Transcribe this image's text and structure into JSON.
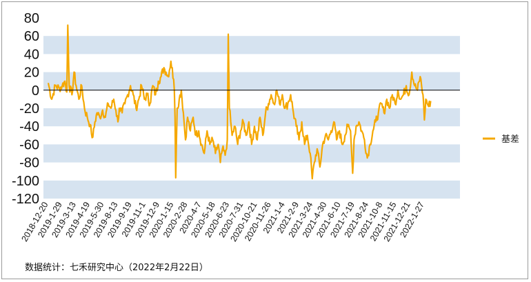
{
  "chart_data": {
    "type": "line",
    "ylim": [
      -120,
      80
    ],
    "y_ticks": [
      80,
      60,
      40,
      20,
      0,
      -20,
      -40,
      -60,
      -80,
      -100,
      -120
    ],
    "x_ticks": [
      "2018-12-20",
      "2019-1-29",
      "2019-3-13",
      "2019-4-19",
      "2019-5-30",
      "2019-8-13",
      "2019-9-19",
      "2019-11-1",
      "2019-12-9",
      "2020-1-15",
      "2020-2-28",
      "2020-4-7",
      "2020-5-18",
      "2020-6-23",
      "2020-7-31",
      "2020-10-21",
      "2020-11-26",
      "2021-1-4",
      "2021-2-9",
      "2021-3-24",
      "2021-4-30",
      "2021-6-10",
      "2021-7-19",
      "2021-8-24",
      "2021-10-8",
      "2021-11-15",
      "2021-12-21",
      "2022-1-27"
    ],
    "grid": "alternating horizontal bands",
    "legend": "right",
    "series": [
      {
        "name": "基差",
        "color": "#f5a800",
        "keypoints": [
          [
            0,
            8
          ],
          [
            0.25,
            -10
          ],
          [
            0.5,
            5
          ],
          [
            0.8,
            2
          ],
          [
            1.0,
            5
          ],
          [
            1.2,
            10
          ],
          [
            1.33,
            -2
          ],
          [
            1.4,
            72
          ],
          [
            1.5,
            5
          ],
          [
            1.7,
            -5
          ],
          [
            1.85,
            20
          ],
          [
            2.0,
            5
          ],
          [
            2.2,
            -10
          ],
          [
            2.4,
            5
          ],
          [
            2.6,
            -20
          ],
          [
            2.8,
            -30
          ],
          [
            3.0,
            -38
          ],
          [
            3.1,
            -48
          ],
          [
            3.2,
            -52
          ],
          [
            3.35,
            -35
          ],
          [
            3.5,
            -25
          ],
          [
            3.7,
            -30
          ],
          [
            3.9,
            -22
          ],
          [
            4.1,
            -30
          ],
          [
            4.3,
            -15
          ],
          [
            4.5,
            -20
          ],
          [
            4.7,
            -10
          ],
          [
            4.85,
            -22
          ],
          [
            5.0,
            -35
          ],
          [
            5.1,
            -20
          ],
          [
            5.3,
            -25
          ],
          [
            5.5,
            -15
          ],
          [
            5.7,
            -5
          ],
          [
            5.9,
            5
          ],
          [
            6.1,
            -5
          ],
          [
            6.3,
            -20
          ],
          [
            6.5,
            -10
          ],
          [
            6.7,
            5
          ],
          [
            6.9,
            -10
          ],
          [
            7.1,
            -5
          ],
          [
            7.3,
            -15
          ],
          [
            7.5,
            5
          ],
          [
            7.7,
            -5
          ],
          [
            7.9,
            10
          ],
          [
            8.1,
            15
          ],
          [
            8.3,
            25
          ],
          [
            8.45,
            20
          ],
          [
            8.6,
            15
          ],
          [
            8.8,
            32
          ],
          [
            9.0,
            12
          ],
          [
            9.05,
            0
          ],
          [
            9.1,
            -30
          ],
          [
            9.15,
            -97
          ],
          [
            9.25,
            -20
          ],
          [
            9.4,
            -10
          ],
          [
            9.55,
            0
          ],
          [
            9.7,
            -25
          ],
          [
            9.85,
            -55
          ],
          [
            10.0,
            -30
          ],
          [
            10.2,
            -45
          ],
          [
            10.4,
            -30
          ],
          [
            10.6,
            -50
          ],
          [
            10.8,
            -45
          ],
          [
            11.0,
            -60
          ],
          [
            11.2,
            -70
          ],
          [
            11.4,
            -45
          ],
          [
            11.6,
            -60
          ],
          [
            11.8,
            -55
          ],
          [
            12.0,
            -70
          ],
          [
            12.2,
            -60
          ],
          [
            12.35,
            -80
          ],
          [
            12.5,
            -65
          ],
          [
            12.7,
            -72
          ],
          [
            12.85,
            -55
          ],
          [
            12.92,
            62
          ],
          [
            13.0,
            -20
          ],
          [
            13.1,
            -35
          ],
          [
            13.2,
            -50
          ],
          [
            13.4,
            -40
          ],
          [
            13.6,
            -60
          ],
          [
            13.8,
            -45
          ],
          [
            14.0,
            -35
          ],
          [
            14.2,
            -50
          ],
          [
            14.4,
            -35
          ],
          [
            14.6,
            -60
          ],
          [
            14.8,
            -40
          ],
          [
            15.0,
            -55
          ],
          [
            15.2,
            -30
          ],
          [
            15.4,
            -50
          ],
          [
            15.6,
            -25
          ],
          [
            15.8,
            -15
          ],
          [
            16.0,
            -5
          ],
          [
            16.2,
            -15
          ],
          [
            16.4,
            0
          ],
          [
            16.6,
            -15
          ],
          [
            16.8,
            -5
          ],
          [
            17.0,
            -20
          ],
          [
            17.2,
            -15
          ],
          [
            17.4,
            -5
          ],
          [
            17.6,
            -25
          ],
          [
            17.8,
            -40
          ],
          [
            18.0,
            -55
          ],
          [
            18.2,
            -35
          ],
          [
            18.4,
            -60
          ],
          [
            18.6,
            -50
          ],
          [
            18.8,
            -70
          ],
          [
            18.95,
            -98
          ],
          [
            19.1,
            -80
          ],
          [
            19.3,
            -65
          ],
          [
            19.5,
            -85
          ],
          [
            19.7,
            -60
          ],
          [
            19.9,
            -50
          ],
          [
            20.1,
            -55
          ],
          [
            20.3,
            -45
          ],
          [
            20.5,
            -35
          ],
          [
            20.7,
            -55
          ],
          [
            20.9,
            -45
          ],
          [
            21.1,
            -60
          ],
          [
            21.3,
            -50
          ],
          [
            21.5,
            -40
          ],
          [
            21.7,
            -45
          ],
          [
            21.85,
            -92
          ],
          [
            21.95,
            -55
          ],
          [
            22.1,
            -40
          ],
          [
            22.3,
            -35
          ],
          [
            22.5,
            -45
          ],
          [
            22.7,
            -55
          ],
          [
            22.9,
            -75
          ],
          [
            23.1,
            -60
          ],
          [
            23.3,
            -45
          ],
          [
            23.5,
            -35
          ],
          [
            23.7,
            -25
          ],
          [
            23.9,
            -15
          ],
          [
            24.1,
            -25
          ],
          [
            24.3,
            -10
          ],
          [
            24.5,
            -20
          ],
          [
            24.7,
            -5
          ],
          [
            24.9,
            -15
          ],
          [
            25.1,
            0
          ],
          [
            25.3,
            -10
          ],
          [
            25.5,
            -5
          ],
          [
            25.7,
            5
          ],
          [
            25.9,
            -5
          ],
          [
            26.1,
            20
          ],
          [
            26.3,
            5
          ],
          [
            26.5,
            0
          ],
          [
            26.7,
            15
          ],
          [
            26.9,
            -5
          ],
          [
            27.0,
            -33
          ],
          [
            27.1,
            -10
          ],
          [
            27.3,
            -18
          ],
          [
            27.45,
            -12
          ]
        ]
      }
    ]
  },
  "legend": {
    "label": "基差"
  },
  "footer": {
    "source": "数据统计：七禾研究中心（2022年2月22日）"
  }
}
